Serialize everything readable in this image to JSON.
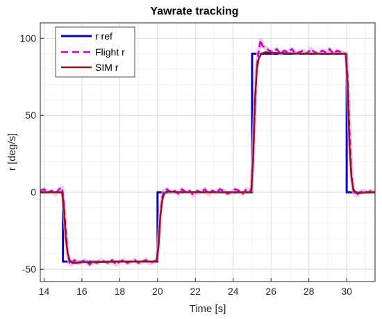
{
  "chart_data": {
    "type": "line",
    "title": "Yawrate tracking",
    "xlabel": "Time [s]",
    "ylabel": "r [deg/s]",
    "xlim": [
      13.8,
      31.5
    ],
    "ylim": [
      -58,
      110
    ],
    "xticks": [
      14,
      16,
      18,
      20,
      22,
      24,
      26,
      28,
      30
    ],
    "yticks": [
      -50,
      0,
      50,
      100
    ],
    "grid": true,
    "legend_position": "top-left",
    "series": [
      {
        "name": "r ref",
        "color": "#0000cc",
        "style": "solid",
        "x": [
          13.8,
          15.0,
          15.0,
          20.0,
          20.0,
          25.0,
          25.0,
          30.0,
          30.0,
          31.5
        ],
        "y": [
          0,
          0,
          -45,
          -45,
          0,
          0,
          90,
          90,
          0,
          0
        ]
      },
      {
        "name": "Flight r",
        "color": "#cc00cc",
        "style": "dashed",
        "x": [
          13.8,
          14.0,
          14.2,
          14.4,
          14.6,
          14.8,
          14.95,
          15.05,
          15.15,
          15.25,
          15.35,
          15.45,
          15.6,
          15.8,
          16.0,
          16.2,
          16.4,
          16.6,
          16.8,
          17.0,
          17.2,
          17.4,
          17.6,
          17.8,
          18.0,
          18.2,
          18.4,
          18.6,
          18.8,
          19.0,
          19.2,
          19.4,
          19.6,
          19.8,
          19.95,
          20.05,
          20.15,
          20.25,
          20.35,
          20.5,
          20.7,
          20.9,
          21.1,
          21.3,
          21.5,
          21.7,
          21.9,
          22.1,
          22.3,
          22.5,
          22.7,
          22.9,
          23.1,
          23.3,
          23.5,
          23.7,
          23.9,
          24.1,
          24.3,
          24.5,
          24.7,
          24.95,
          25.05,
          25.15,
          25.25,
          25.35,
          25.45,
          25.55,
          25.7,
          25.9,
          26.1,
          26.3,
          26.5,
          26.7,
          26.9,
          27.1,
          27.3,
          27.5,
          27.7,
          27.9,
          28.1,
          28.3,
          28.5,
          28.7,
          28.9,
          29.1,
          29.3,
          29.5,
          29.7,
          29.95,
          30.05,
          30.15,
          30.25,
          30.35,
          30.5,
          30.7,
          30.9,
          31.1,
          31.3,
          31.5
        ],
        "y": [
          1,
          2,
          0,
          1,
          -1,
          2,
          3,
          -8,
          -25,
          -40,
          -46,
          -47,
          -44,
          -46,
          -45,
          -44,
          -47,
          -45,
          -46,
          -44,
          -45,
          -46,
          -44,
          -47,
          -45,
          -44,
          -46,
          -45,
          -44,
          -46,
          -45,
          -44,
          -46,
          -45,
          -44,
          -35,
          -15,
          -3,
          1,
          2,
          0,
          1,
          -1,
          2,
          0,
          1,
          -2,
          1,
          0,
          2,
          -1,
          1,
          0,
          2,
          1,
          -1,
          0,
          2,
          1,
          -1,
          2,
          1,
          20,
          55,
          82,
          92,
          99,
          95,
          94,
          92,
          91,
          93,
          90,
          92,
          91,
          93,
          90,
          91,
          92,
          90,
          93,
          91,
          90,
          92,
          91,
          93,
          90,
          92,
          91,
          90,
          75,
          40,
          12,
          1,
          -2,
          0,
          1,
          0,
          1,
          0
        ]
      },
      {
        "name": "SIM r",
        "color": "#8b1a1a",
        "style": "solid",
        "x": [
          13.8,
          14.95,
          15.05,
          15.15,
          15.25,
          15.35,
          15.5,
          15.7,
          16.0,
          18.0,
          19.95,
          20.05,
          20.15,
          20.25,
          20.35,
          20.5,
          20.7,
          21.0,
          23.0,
          24.95,
          25.05,
          25.15,
          25.25,
          25.35,
          25.5,
          25.7,
          26.0,
          28.0,
          29.95,
          30.05,
          30.15,
          30.25,
          30.35,
          30.5,
          30.7,
          31.0,
          31.5
        ],
        "y": [
          0,
          0,
          -10,
          -30,
          -40,
          -44,
          -46,
          -46,
          -45.5,
          -45,
          -45,
          -35,
          -15,
          -5,
          -1,
          0.5,
          0.5,
          0.2,
          0,
          0,
          20,
          60,
          80,
          87,
          90,
          91,
          90.5,
          90,
          90,
          70,
          30,
          10,
          2,
          -0.5,
          -0.5,
          -0.2,
          0
        ]
      }
    ]
  }
}
